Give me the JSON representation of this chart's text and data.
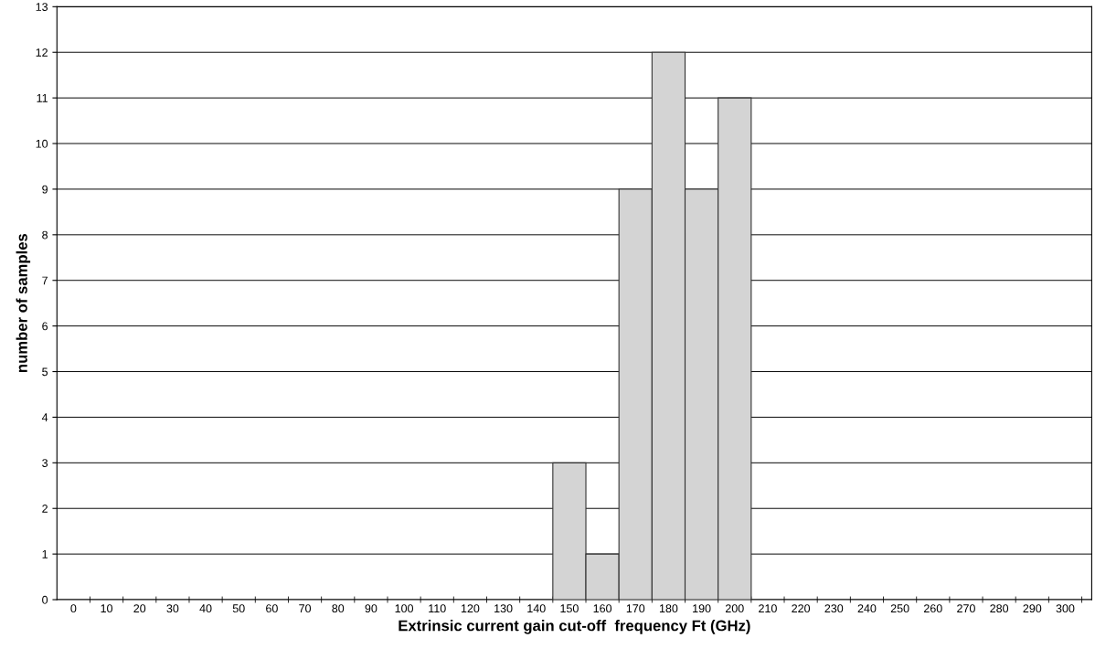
{
  "chart_data": {
    "type": "bar",
    "xlabel": "Extrinsic current gain cut-off  frequency Ft (GHz)",
    "ylabel": "number of samples",
    "categories": [
      "0",
      "10",
      "20",
      "30",
      "40",
      "50",
      "60",
      "70",
      "80",
      "90",
      "100",
      "110",
      "120",
      "130",
      "140",
      "150",
      "160",
      "170",
      "180",
      "190",
      "200",
      "210",
      "220",
      "230",
      "240",
      "250",
      "260",
      "270",
      "280",
      "290",
      "300"
    ],
    "values": [
      0,
      0,
      0,
      0,
      0,
      0,
      0,
      0,
      0,
      0,
      0,
      0,
      0,
      0,
      0,
      3,
      1,
      9,
      12,
      9,
      11,
      0,
      0,
      0,
      0,
      0,
      0,
      0,
      0,
      0,
      0
    ],
    "color": "#d4d4d4",
    "ylim": [
      0,
      13
    ],
    "yticks": [
      0,
      1,
      2,
      3,
      4,
      5,
      6,
      7,
      8,
      9,
      10,
      11,
      12,
      13
    ],
    "grid": "y",
    "legend": false
  }
}
